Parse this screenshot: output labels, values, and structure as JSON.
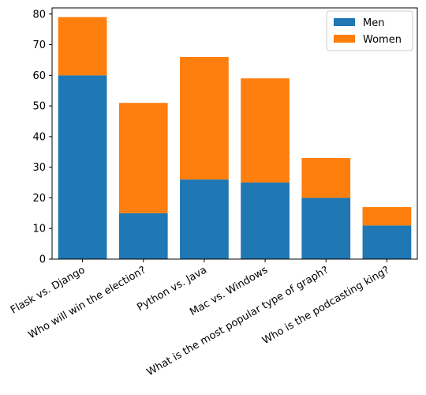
{
  "chart_data": {
    "type": "bar",
    "stacked": true,
    "categories": [
      "Flask vs. Django",
      "Who will win the election?",
      "Python vs. Java",
      "Mac vs. Windows",
      "What is the most popular type of graph?",
      "Who is the podcasting king?"
    ],
    "series": [
      {
        "name": "Men",
        "color": "#1f77b4",
        "values": [
          60,
          15,
          26,
          25,
          20,
          11
        ]
      },
      {
        "name": "Women",
        "color": "#ff7f0e",
        "values": [
          19,
          36,
          40,
          34,
          13,
          6
        ]
      }
    ],
    "title": "",
    "xlabel": "",
    "ylabel": "",
    "ylim": [
      0,
      82
    ],
    "yticks": [
      0,
      10,
      20,
      30,
      40,
      50,
      60,
      70,
      80
    ],
    "x_tick_rotation": 30,
    "grid": false,
    "legend": {
      "position": "top-right",
      "entries": [
        "Men",
        "Women"
      ]
    }
  }
}
